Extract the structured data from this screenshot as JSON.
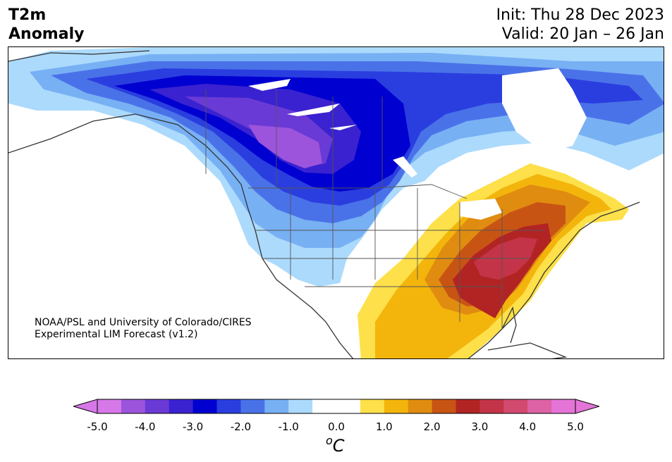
{
  "title": {
    "line1": "T2m",
    "line2": "Anomaly"
  },
  "dates": {
    "init": "Init: Thu 28 Dec 2023",
    "valid": "Valid: 20 Jan – 26 Jan"
  },
  "credit": {
    "line1": "NOAA/PSL and University of Colorado/CIRES",
    "line2": "Experimental LIM Forecast (v1.2)"
  },
  "colorbar": {
    "unit_sup": "o",
    "unit": "C",
    "ticks": [
      "-5.0",
      "-4.0",
      "-3.0",
      "-2.0",
      "-1.0",
      "0.0",
      "1.0",
      "2.0",
      "3.0",
      "4.0",
      "5.0"
    ],
    "colors": [
      "#d678e8",
      "#9c54dc",
      "#6a3ad6",
      "#3a22d0",
      "#0000d0",
      "#2a3ee0",
      "#4a72e8",
      "#78b0f4",
      "#acdafc",
      "#ffffff",
      "#ffffff",
      "#fde04a",
      "#f3b50c",
      "#e08c10",
      "#c85414",
      "#b22424",
      "#c43448",
      "#d24a70",
      "#de62a6",
      "#e474d6"
    ]
  }
}
